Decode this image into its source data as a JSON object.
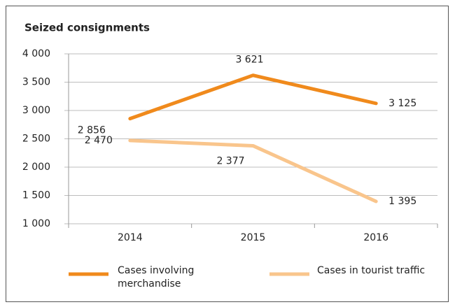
{
  "chart_data": {
    "type": "line",
    "title": "Seized consignments",
    "categories": [
      "2014",
      "2015",
      "2016"
    ],
    "series": [
      {
        "name": "Cases involving merchandise",
        "color": "#f08a1c",
        "values": [
          2856,
          3621,
          3125
        ],
        "value_labels": [
          "2 856",
          "3 621",
          "3 125"
        ]
      },
      {
        "name": "Cases in tourist traffic",
        "color": "#f9c58c",
        "values": [
          2470,
          2377,
          1395
        ],
        "value_labels": [
          "2 470",
          "2 377",
          "1 395"
        ]
      }
    ],
    "ylim": [
      1000,
      4000
    ],
    "yticks": [
      {
        "value": 1000,
        "label": "1 000"
      },
      {
        "value": 1500,
        "label": "1 500"
      },
      {
        "value": 2000,
        "label": "2 000"
      },
      {
        "value": 2500,
        "label": "2 500"
      },
      {
        "value": 3000,
        "label": "3 000"
      },
      {
        "value": 3500,
        "label": "3 500"
      },
      {
        "value": 4000,
        "label": "4 000"
      }
    ],
    "grid": true
  }
}
